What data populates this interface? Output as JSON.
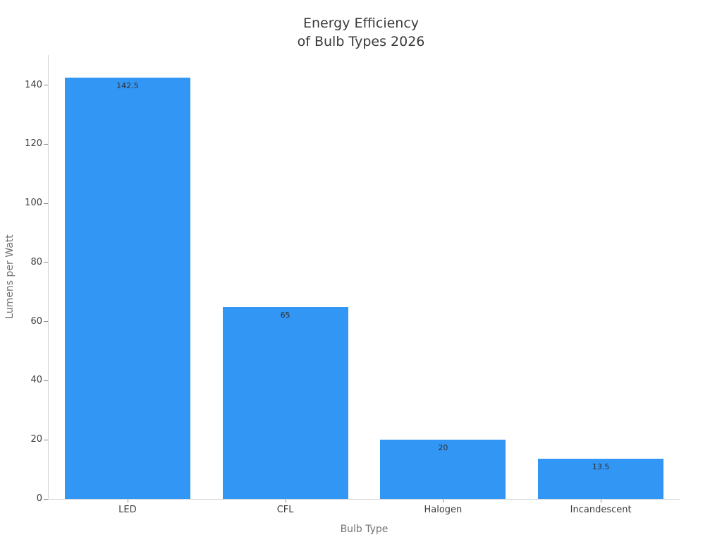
{
  "chart_data": {
    "type": "bar",
    "title_lines": [
      "Energy Efficiency",
      "of Bulb Types 2026"
    ],
    "title": "Energy Efficiency of Bulb Types 2026",
    "xlabel": "Bulb Type",
    "ylabel": "Lumens per Watt",
    "categories": [
      "LED",
      "CFL",
      "Halogen",
      "Incandescent"
    ],
    "values": [
      142.5,
      65,
      20,
      13.5
    ],
    "bar_value_labels": [
      "142.5",
      "65",
      "20",
      "13.5"
    ],
    "yticks": [
      0,
      20,
      40,
      60,
      80,
      100,
      120,
      140
    ],
    "ylim": [
      0,
      150.2
    ],
    "grid": false,
    "legend_position": "none",
    "colors": {
      "bar_fill": "#3296f5",
      "spine": "#d5d5d5",
      "tick_mark": "#8a8a8a",
      "tick_label": "#3d3d3d",
      "axis_title": "#737373",
      "chart_title": "#3a3a3a",
      "bar_value_label": "#303030",
      "background": "#ffffff"
    }
  }
}
